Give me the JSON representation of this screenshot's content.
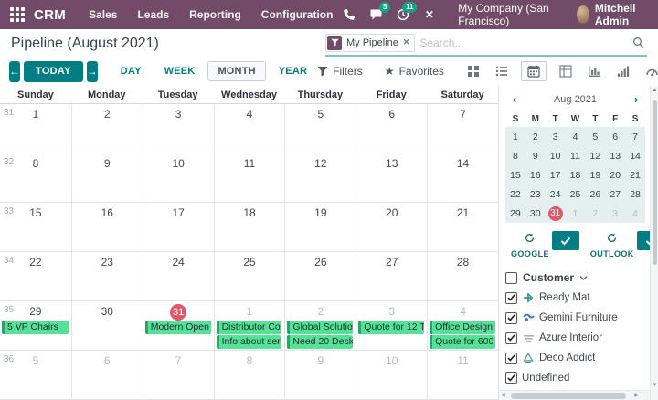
{
  "colors": {
    "brand": "#714B67",
    "accent_teal": "#017e84",
    "badge_green": "#12a382",
    "event_green": "#55e296",
    "event_border": "#2aa567",
    "today_red": "#e4576b",
    "minical_highlight": "#e4f0ef"
  },
  "navbar": {
    "app": "CRM",
    "menus": [
      "Sales",
      "Leads",
      "Reporting",
      "Configuration"
    ],
    "message_count": "5",
    "activity_count": "11",
    "company": "My Company (San Francisco)",
    "user": "Mitchell Admin"
  },
  "control_panel": {
    "title": "Pipeline (August 2021)",
    "facet": "My Pipeline",
    "search_placeholder": "Search..."
  },
  "toolbar": {
    "today": "TODAY",
    "scales": [
      {
        "label": "DAY",
        "active": false
      },
      {
        "label": "WEEK",
        "active": false
      },
      {
        "label": "MONTH",
        "active": true
      },
      {
        "label": "YEAR",
        "active": false
      }
    ],
    "filters_label": "Filters",
    "favorites_label": "Favorites",
    "views": [
      "kanban",
      "list",
      "calendar",
      "pivot",
      "graph",
      "cohort",
      "dashboard",
      "map",
      "activity"
    ],
    "active_view": "calendar"
  },
  "calendar": {
    "day_headers": [
      "Sunday",
      "Monday",
      "Tuesday",
      "Wednesday",
      "Thursday",
      "Friday",
      "Saturday"
    ],
    "weeks": [
      {
        "num": "31",
        "days": [
          {
            "n": "1"
          },
          {
            "n": "2"
          },
          {
            "n": "3"
          },
          {
            "n": "4"
          },
          {
            "n": "5"
          },
          {
            "n": "6"
          },
          {
            "n": "7"
          }
        ]
      },
      {
        "num": "32",
        "days": [
          {
            "n": "8"
          },
          {
            "n": "9"
          },
          {
            "n": "10"
          },
          {
            "n": "11"
          },
          {
            "n": "12"
          },
          {
            "n": "13"
          },
          {
            "n": "14"
          }
        ]
      },
      {
        "num": "33",
        "days": [
          {
            "n": "15"
          },
          {
            "n": "16"
          },
          {
            "n": "17"
          },
          {
            "n": "18"
          },
          {
            "n": "19"
          },
          {
            "n": "20"
          },
          {
            "n": "21"
          }
        ]
      },
      {
        "num": "34",
        "days": [
          {
            "n": "22"
          },
          {
            "n": "23"
          },
          {
            "n": "24"
          },
          {
            "n": "25"
          },
          {
            "n": "26"
          },
          {
            "n": "27"
          },
          {
            "n": "28"
          }
        ]
      },
      {
        "num": "35",
        "days": [
          {
            "n": "29",
            "events": [
              "5 VP Chairs"
            ]
          },
          {
            "n": "30"
          },
          {
            "n": "31",
            "today": true,
            "events": [
              "Modern Open ..."
            ]
          },
          {
            "n": "1",
            "muted": true,
            "events": [
              "Distributor Co...",
              "Info about ser..."
            ]
          },
          {
            "n": "2",
            "muted": true,
            "events": [
              "Global Solutio...",
              "Need 20 Desks"
            ]
          },
          {
            "n": "3",
            "muted": true,
            "events": [
              "Quote for 12 T..."
            ]
          },
          {
            "n": "4",
            "muted": true,
            "events": [
              "Office Design ...",
              "Quote for 600 ..."
            ]
          }
        ]
      },
      {
        "num": "36",
        "days": [
          {
            "n": "5",
            "muted": true
          },
          {
            "n": "6",
            "muted": true
          },
          {
            "n": "7",
            "muted": true
          },
          {
            "n": "8",
            "muted": true
          },
          {
            "n": "9",
            "muted": true
          },
          {
            "n": "10",
            "muted": true
          },
          {
            "n": "11",
            "muted": true
          }
        ]
      }
    ]
  },
  "sidebar": {
    "minical": {
      "prev": "‹",
      "title": "Aug 2021",
      "next": "›",
      "dow": [
        "S",
        "M",
        "T",
        "W",
        "T",
        "F",
        "S"
      ],
      "rows": [
        [
          {
            "n": "1"
          },
          {
            "n": "2"
          },
          {
            "n": "3"
          },
          {
            "n": "4"
          },
          {
            "n": "5"
          },
          {
            "n": "6"
          },
          {
            "n": "7"
          }
        ],
        [
          {
            "n": "8"
          },
          {
            "n": "9"
          },
          {
            "n": "10"
          },
          {
            "n": "11"
          },
          {
            "n": "12"
          },
          {
            "n": "13"
          },
          {
            "n": "14"
          }
        ],
        [
          {
            "n": "15"
          },
          {
            "n": "16"
          },
          {
            "n": "17"
          },
          {
            "n": "18"
          },
          {
            "n": "19"
          },
          {
            "n": "20"
          },
          {
            "n": "21"
          }
        ],
        [
          {
            "n": "22"
          },
          {
            "n": "23"
          },
          {
            "n": "24"
          },
          {
            "n": "25"
          },
          {
            "n": "26"
          },
          {
            "n": "27"
          },
          {
            "n": "28"
          }
        ],
        [
          {
            "n": "29"
          },
          {
            "n": "30"
          },
          {
            "n": "31",
            "today": true
          },
          {
            "n": "1",
            "muted": true
          },
          {
            "n": "2",
            "muted": true
          },
          {
            "n": "3",
            "muted": true
          },
          {
            "n": "4",
            "muted": true
          }
        ]
      ]
    },
    "sync": [
      {
        "label": "GOOGLE"
      },
      {
        "label": "OUTLOOK"
      }
    ],
    "filters": {
      "header": "Customer",
      "items": [
        {
          "label": "Ready Mat",
          "checked": true,
          "avatar": "ready-mat-logo",
          "color": "#3f9d9d"
        },
        {
          "label": "Gemini Furniture",
          "checked": true,
          "avatar": "gemini-furniture-logo",
          "color": "#3b7ecb"
        },
        {
          "label": "Azure Interior",
          "checked": true,
          "avatar": "azure-interior-logo",
          "color": "#a9b2b8"
        },
        {
          "label": "Deco Addict",
          "checked": true,
          "avatar": "deco-addict-logo",
          "color": "#58a09f"
        },
        {
          "label": "Undefined",
          "checked": true,
          "avatar": null,
          "color": null
        }
      ]
    }
  }
}
